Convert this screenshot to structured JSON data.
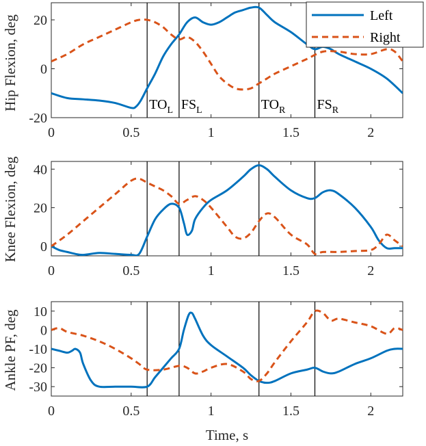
{
  "colors": {
    "left": "#0072BD",
    "right": "#D95319",
    "axis": "#262626",
    "events": "#000000"
  },
  "legend": {
    "left_label": "Left",
    "right_label": "Right",
    "location": "top-right"
  },
  "x_axis": {
    "label": "Time, s",
    "xlim": [
      0,
      2.2
    ],
    "ticks": [
      0,
      0.5,
      1,
      1.5,
      2
    ],
    "tick_labels": [
      "0",
      "0.5",
      "1",
      "1.5",
      "2"
    ]
  },
  "events": [
    {
      "time": 0.6,
      "main": "TO",
      "sub": "L"
    },
    {
      "time": 0.8,
      "main": "FS",
      "sub": "L"
    },
    {
      "time": 1.3,
      "main": "TO",
      "sub": "R"
    },
    {
      "time": 1.65,
      "main": "FS",
      "sub": "R"
    }
  ],
  "chart_data": [
    {
      "type": "line",
      "ylabel": "Hip Flexion, deg",
      "xlim": [
        0,
        2.2
      ],
      "ylim": [
        -20,
        27
      ],
      "yticks": [
        -20,
        0,
        20
      ],
      "ytick_labels": [
        "-20",
        "0",
        "20"
      ],
      "series": [
        {
          "name": "Left",
          "x": [
            0,
            0.1,
            0.2,
            0.3,
            0.4,
            0.5,
            0.53,
            0.56,
            0.6,
            0.65,
            0.7,
            0.75,
            0.8,
            0.85,
            0.9,
            0.95,
            1.0,
            1.05,
            1.1,
            1.15,
            1.2,
            1.25,
            1.3,
            1.35,
            1.4,
            1.5,
            1.6,
            1.65,
            1.7,
            1.75,
            1.8,
            1.9,
            2.0,
            2.1,
            2.2
          ],
          "values": [
            -10,
            -12,
            -12.5,
            -13,
            -14,
            -16,
            -15.5,
            -13,
            -8,
            -2,
            5,
            10,
            14,
            19,
            21,
            19,
            18,
            19,
            21,
            23,
            24,
            25,
            25,
            22,
            19,
            15,
            10,
            8,
            9,
            8,
            6,
            3,
            0,
            -4,
            -10
          ]
        },
        {
          "name": "Right",
          "x": [
            0,
            0.1,
            0.2,
            0.3,
            0.4,
            0.5,
            0.55,
            0.6,
            0.65,
            0.7,
            0.75,
            0.8,
            0.85,
            0.9,
            0.95,
            1.0,
            1.05,
            1.1,
            1.15,
            1.2,
            1.25,
            1.3,
            1.35,
            1.4,
            1.5,
            1.6,
            1.7,
            1.8,
            1.9,
            2.0,
            2.1,
            2.15,
            2.2
          ],
          "values": [
            3,
            6,
            10,
            13,
            16,
            19,
            20,
            20,
            19,
            17,
            14,
            12,
            13,
            11,
            7,
            2,
            -3,
            -6,
            -8,
            -8.5,
            -8,
            -6,
            -4,
            -2,
            1,
            4,
            7,
            7,
            6,
            6,
            8,
            7,
            3
          ]
        }
      ]
    },
    {
      "type": "line",
      "ylabel": "Knee Flexion, deg",
      "xlim": [
        0,
        2.2
      ],
      "ylim": [
        -5,
        44
      ],
      "yticks": [
        0,
        20,
        40
      ],
      "ytick_labels": [
        "0",
        "20",
        "40"
      ],
      "series": [
        {
          "name": "Left",
          "x": [
            0,
            0.05,
            0.1,
            0.15,
            0.2,
            0.3,
            0.4,
            0.5,
            0.55,
            0.6,
            0.65,
            0.7,
            0.75,
            0.8,
            0.83,
            0.85,
            0.88,
            0.9,
            0.95,
            1.0,
            1.1,
            1.2,
            1.25,
            1.3,
            1.35,
            1.4,
            1.5,
            1.6,
            1.65,
            1.7,
            1.75,
            1.8,
            1.9,
            2.0,
            2.05,
            2.1,
            2.15,
            2.2
          ],
          "values": [
            0,
            -2,
            -3,
            -4,
            -4.5,
            -3.5,
            -4,
            -4.5,
            -4,
            5,
            14,
            19,
            22,
            20,
            12,
            6,
            8,
            14,
            20,
            24,
            29,
            36,
            40,
            42,
            40,
            36,
            29,
            25,
            25,
            28,
            29,
            27,
            20,
            10,
            3,
            -1,
            -1,
            -1
          ]
        },
        {
          "name": "Right",
          "x": [
            0,
            0.1,
            0.2,
            0.3,
            0.4,
            0.5,
            0.55,
            0.6,
            0.65,
            0.7,
            0.75,
            0.8,
            0.85,
            0.9,
            0.95,
            1.0,
            1.1,
            1.15,
            1.2,
            1.25,
            1.3,
            1.35,
            1.4,
            1.5,
            1.6,
            1.65,
            1.7,
            1.8,
            1.9,
            2.0,
            2.05,
            2.1,
            2.15,
            2.2
          ],
          "values": [
            0,
            6,
            13,
            20,
            27,
            34,
            35,
            33,
            31,
            29,
            26,
            22,
            24,
            26,
            24,
            20,
            10,
            5,
            4,
            7,
            13,
            17,
            15,
            6,
            1,
            -4,
            -3,
            -3,
            -2.5,
            -2,
            1,
            6,
            3,
            0
          ]
        }
      ]
    },
    {
      "type": "line",
      "ylabel": "Ankle PF, deg",
      "xlim": [
        0,
        2.2
      ],
      "ylim": [
        -35,
        15
      ],
      "yticks": [
        -30,
        -20,
        -10,
        0,
        10
      ],
      "ytick_labels": [
        "-30",
        "-20",
        "-10",
        "0",
        "10"
      ],
      "series": [
        {
          "name": "Left",
          "x": [
            0,
            0.05,
            0.1,
            0.13,
            0.15,
            0.18,
            0.2,
            0.25,
            0.3,
            0.4,
            0.5,
            0.6,
            0.65,
            0.7,
            0.75,
            0.8,
            0.83,
            0.86,
            0.88,
            0.9,
            0.95,
            1.0,
            1.1,
            1.2,
            1.25,
            1.3,
            1.35,
            1.4,
            1.5,
            1.6,
            1.65,
            1.7,
            1.75,
            1.8,
            1.9,
            2.0,
            2.1,
            2.15,
            2.2
          ],
          "values": [
            -10,
            -11,
            -12,
            -11,
            -10,
            -12,
            -18,
            -27,
            -30,
            -30,
            -30,
            -30,
            -25,
            -20,
            -15,
            -10,
            0,
            8,
            9,
            6,
            -3,
            -8,
            -14,
            -20,
            -24,
            -27,
            -28,
            -27,
            -23,
            -21,
            -20,
            -22,
            -23,
            -22,
            -18,
            -15,
            -11,
            -10,
            -10
          ]
        },
        {
          "name": "Right",
          "x": [
            0,
            0.05,
            0.1,
            0.2,
            0.3,
            0.4,
            0.5,
            0.55,
            0.6,
            0.7,
            0.8,
            0.85,
            0.9,
            0.95,
            1.0,
            1.1,
            1.2,
            1.25,
            1.3,
            1.35,
            1.4,
            1.5,
            1.6,
            1.65,
            1.7,
            1.75,
            1.8,
            1.9,
            2.0,
            2.1,
            2.15,
            2.2
          ],
          "values": [
            0,
            1,
            -1,
            -3,
            -6,
            -10,
            -15,
            -18,
            -21,
            -21,
            -19,
            -20,
            -23,
            -22,
            -20,
            -18,
            -22,
            -26,
            -27,
            -23,
            -17,
            -6,
            4,
            10,
            9,
            5,
            6,
            4,
            2,
            -2,
            1,
            0
          ]
        }
      ]
    }
  ]
}
